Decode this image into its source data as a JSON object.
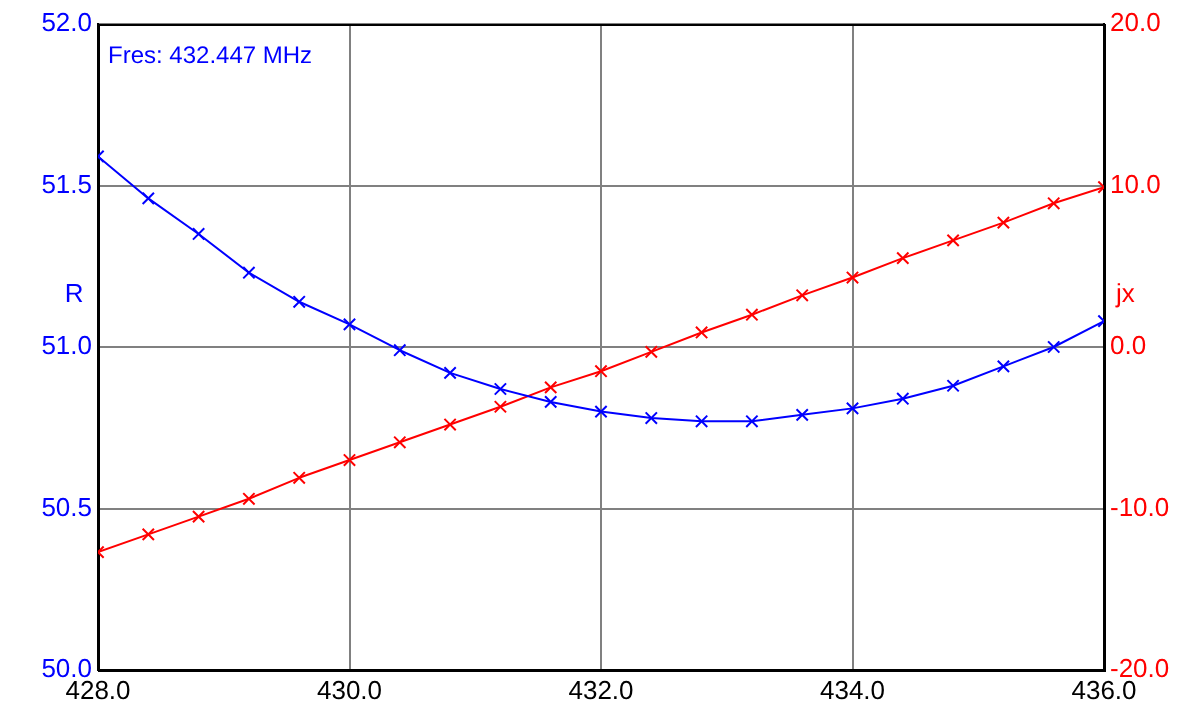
{
  "chart_data": {
    "type": "line",
    "ylabel": "R",
    "y2label": "jx",
    "annotations": [
      "Fres: 432.447 MHz"
    ],
    "x": [
      428.0,
      428.4,
      428.8,
      429.2,
      429.6,
      430.0,
      430.4,
      430.8,
      431.2,
      431.6,
      432.0,
      432.4,
      432.8,
      433.2,
      433.6,
      434.0,
      434.4,
      434.8,
      435.2,
      435.6,
      436.0
    ],
    "series": [
      {
        "color": "#0000ff",
        "values": [
          51.59,
          51.46,
          51.35,
          51.23,
          51.14,
          51.07,
          50.99,
          50.92,
          50.87,
          50.83,
          50.8,
          50.78,
          50.77,
          50.77,
          50.79,
          50.81,
          50.84,
          50.88,
          50.94,
          51.0,
          51.08
        ]
      },
      {
        "color": "#ff0000",
        "axis": "y2",
        "values": [
          -12.7,
          -11.6,
          -10.5,
          -9.4,
          -8.1,
          -7.0,
          -5.9,
          -4.8,
          -3.7,
          -2.5,
          -1.5,
          -0.3,
          0.9,
          2.0,
          3.2,
          4.3,
          5.5,
          6.6,
          7.7,
          8.9,
          9.9
        ]
      }
    ],
    "xlim": [
      428,
      436
    ],
    "xticks": [
      {
        "value": 428,
        "label": "428.0"
      },
      {
        "value": 430,
        "label": "430.0"
      },
      {
        "value": 432,
        "label": "432.0"
      },
      {
        "value": 434,
        "label": "434.0"
      },
      {
        "value": 436,
        "label": "436.0"
      }
    ],
    "ylim": [
      50,
      52
    ],
    "yticks": [
      {
        "value": 50,
        "label": "50.0"
      },
      {
        "value": 50.5,
        "label": "50.5"
      },
      {
        "value": 51,
        "label": "51.0"
      },
      {
        "value": 51.5,
        "label": "51.5"
      },
      {
        "value": 52,
        "label": "52.0"
      }
    ],
    "y2lim": [
      -20,
      20
    ],
    "y2ticks": [
      {
        "value": -20,
        "label": "-20.0"
      },
      {
        "value": -10,
        "label": "-10.0"
      },
      {
        "value": 0,
        "label": "0.0"
      },
      {
        "value": 10,
        "label": "10.0"
      },
      {
        "value": 20,
        "label": "20.0"
      }
    ],
    "grid": true,
    "legend": false,
    "marker": "cross",
    "line_style": "solid"
  }
}
